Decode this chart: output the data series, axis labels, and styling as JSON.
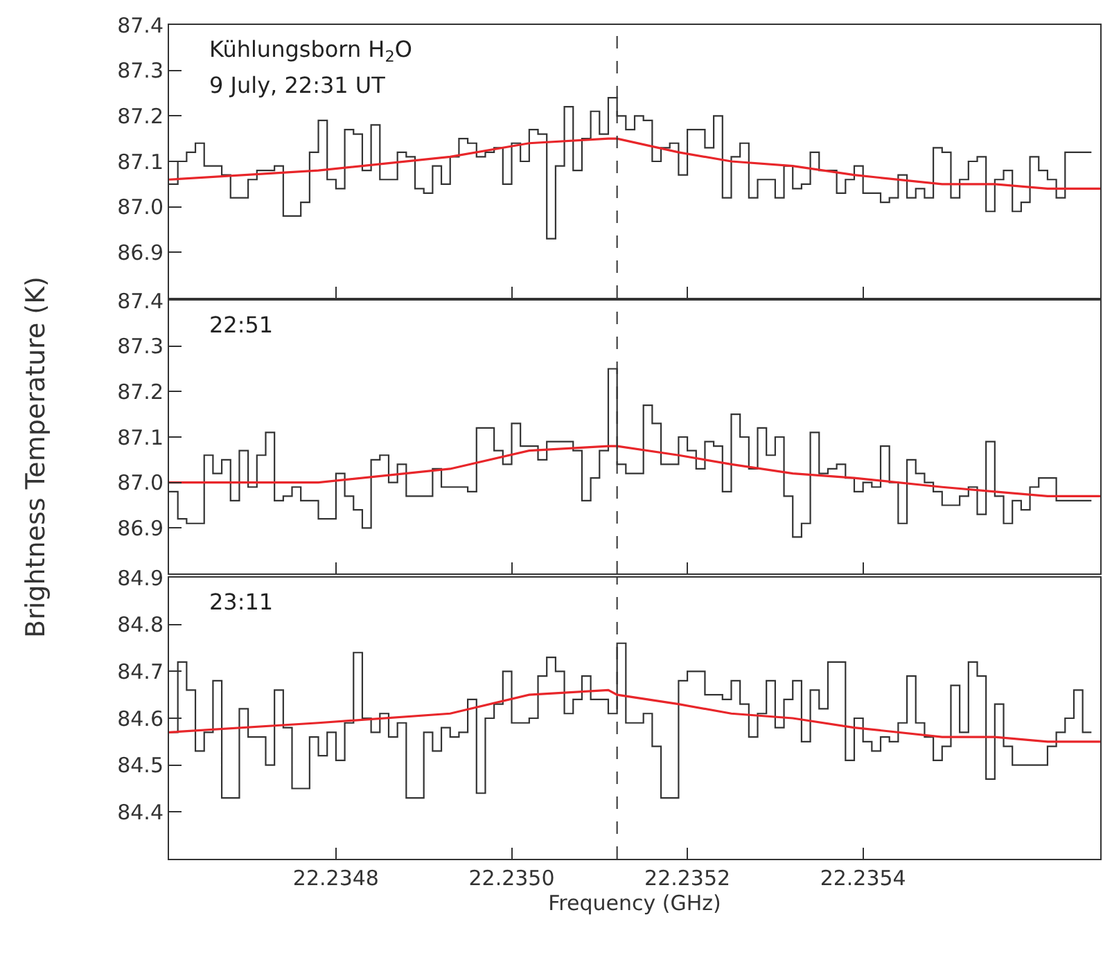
{
  "chart_data": [
    {
      "type": "step",
      "annotations": [
        "Kühlungsborn H$_{2}$O",
        "9 July, 22:31 UT"
      ],
      "x": [
        22.23461,
        22.23462,
        22.23463,
        22.23464,
        22.23465,
        22.23466,
        22.23467,
        22.23468,
        22.23469,
        22.2347,
        22.23471,
        22.23472,
        22.23473,
        22.23474,
        22.23475,
        22.23476,
        22.23477,
        22.23478,
        22.23479,
        22.2348,
        22.23481,
        22.23482,
        22.23483,
        22.23484,
        22.23485,
        22.23486,
        22.23487,
        22.23488,
        22.23489,
        22.2349,
        22.23491,
        22.23492,
        22.23493,
        22.23494,
        22.23495,
        22.23496,
        22.23497,
        22.23498,
        22.23499,
        22.235,
        22.23501,
        22.23502,
        22.23503,
        22.23504,
        22.23505,
        22.23506,
        22.23507,
        22.23508,
        22.23509,
        22.2351,
        22.23511,
        22.23512,
        22.23513,
        22.23514,
        22.23515,
        22.23516,
        22.23517,
        22.23518,
        22.23519,
        22.2352,
        22.23521,
        22.23522,
        22.23523,
        22.23524,
        22.23525,
        22.23526,
        22.23527,
        22.23528,
        22.23529,
        22.2353,
        22.23531,
        22.23532,
        22.23533,
        22.23534,
        22.23535,
        22.23536,
        22.23537,
        22.23538,
        22.23539,
        22.2354,
        22.23541,
        22.23542,
        22.23543,
        22.23544,
        22.23545,
        22.23546,
        22.23547,
        22.23548,
        22.23549,
        22.2355,
        22.23551,
        22.23552,
        22.23553,
        22.23554,
        22.23555,
        22.23556,
        22.23557,
        22.23558,
        22.23559,
        22.2356,
        22.23561,
        22.23562,
        22.23563,
        22.23564,
        22.23565,
        22.23566
      ],
      "series": [
        {
          "color": "#333333",
          "values": [
            87.05,
            87.1,
            87.12,
            87.14,
            87.09,
            87.09,
            87.07,
            87.02,
            87.02,
            87.06,
            87.08,
            87.08,
            87.09,
            86.98,
            86.98,
            87.01,
            87.12,
            87.19,
            87.06,
            87.04,
            87.17,
            87.16,
            87.08,
            87.18,
            87.06,
            87.06,
            87.12,
            87.11,
            87.04,
            87.03,
            87.09,
            87.05,
            87.11,
            87.15,
            87.14,
            87.11,
            87.12,
            87.13,
            87.05,
            87.14,
            87.1,
            87.17,
            87.16,
            86.93,
            87.09,
            87.22,
            87.08,
            87.15,
            87.21,
            87.16,
            87.24,
            87.2,
            87.17,
            87.2,
            87.19,
            87.1,
            87.13,
            87.14,
            87.07,
            87.17,
            87.17,
            87.13,
            87.2,
            87.02,
            87.11,
            87.14,
            87.02,
            87.06,
            87.06,
            87.02,
            87.09,
            87.04,
            87.05,
            87.12,
            87.08,
            87.08,
            87.03,
            87.06,
            87.09,
            87.03,
            87.03,
            87.01,
            87.02,
            87.07,
            87.02,
            87.04,
            87.02,
            87.13,
            87.12,
            87.02,
            87.06,
            87.1,
            87.11,
            86.99,
            87.06,
            87.08,
            86.99,
            87.01,
            87.11,
            87.08,
            87.06,
            87.02,
            87.12,
            87.12,
            87.12,
            87.12
          ]
        },
        {
          "type": "line",
          "color": "#e8262a",
          "x": [
            22.23461,
            22.23478,
            22.23493,
            22.23502,
            22.23511,
            22.23512,
            22.23519,
            22.23525,
            22.23532,
            22.23539,
            22.23549,
            22.23555,
            22.23561,
            22.23567
          ],
          "values": [
            87.06,
            87.08,
            87.11,
            87.14,
            87.15,
            87.15,
            87.12,
            87.1,
            87.09,
            87.07,
            87.05,
            87.05,
            87.04,
            87.04
          ]
        }
      ],
      "xlim": [
        22.23461,
        22.23567
      ],
      "xticks": [
        {
          "value": 22.2348,
          "label": null
        },
        {
          "value": 22.235,
          "label": null
        },
        {
          "value": 22.2352,
          "label": null
        },
        {
          "value": 22.2354,
          "label": null
        }
      ],
      "ylim": [
        86.8,
        87.4
      ],
      "yticks": [
        86.9,
        {
          "value": 87,
          "label": "87.0"
        },
        87.1,
        87.2,
        87.3,
        87.4
      ],
      "ref_lines": [
        {
          "axis": "x",
          "value": 22.23512,
          "color": "#333333",
          "line_style": "dashed"
        }
      ],
      "tick_labels": "y",
      "grid": false
    },
    {
      "type": "step",
      "annotations": [
        "22:51"
      ],
      "ylabel": "Brightness Temperature (K)",
      "x": [
        22.23461,
        22.23462,
        22.23463,
        22.23464,
        22.23465,
        22.23466,
        22.23467,
        22.23468,
        22.23469,
        22.2347,
        22.23471,
        22.23472,
        22.23473,
        22.23474,
        22.23475,
        22.23476,
        22.23477,
        22.23478,
        22.23479,
        22.2348,
        22.23481,
        22.23482,
        22.23483,
        22.23484,
        22.23485,
        22.23486,
        22.23487,
        22.23488,
        22.23489,
        22.2349,
        22.23491,
        22.23492,
        22.23493,
        22.23494,
        22.23495,
        22.23496,
        22.23497,
        22.23498,
        22.23499,
        22.235,
        22.23501,
        22.23502,
        22.23503,
        22.23504,
        22.23505,
        22.23506,
        22.23507,
        22.23508,
        22.23509,
        22.2351,
        22.23511,
        22.23512,
        22.23513,
        22.23514,
        22.23515,
        22.23516,
        22.23517,
        22.23518,
        22.23519,
        22.2352,
        22.23521,
        22.23522,
        22.23523,
        22.23524,
        22.23525,
        22.23526,
        22.23527,
        22.23528,
        22.23529,
        22.2353,
        22.23531,
        22.23532,
        22.23533,
        22.23534,
        22.23535,
        22.23536,
        22.23537,
        22.23538,
        22.23539,
        22.2354,
        22.23541,
        22.23542,
        22.23543,
        22.23544,
        22.23545,
        22.23546,
        22.23547,
        22.23548,
        22.23549,
        22.2355,
        22.23551,
        22.23552,
        22.23553,
        22.23554,
        22.23555,
        22.23556,
        22.23557,
        22.23558,
        22.23559,
        22.2356,
        22.23561,
        22.23562,
        22.23563,
        22.23564,
        22.23565,
        22.23566
      ],
      "series": [
        {
          "color": "#333333",
          "values": [
            86.98,
            86.92,
            86.91,
            86.91,
            87.06,
            87.02,
            87.05,
            86.96,
            87.07,
            86.99,
            87.06,
            87.11,
            86.96,
            86.97,
            86.99,
            86.96,
            86.96,
            86.92,
            86.92,
            87.02,
            86.97,
            86.94,
            86.9,
            87.05,
            87.06,
            87.0,
            87.04,
            86.97,
            86.97,
            86.97,
            87.03,
            86.99,
            86.99,
            86.99,
            86.98,
            87.12,
            87.12,
            87.07,
            87.04,
            87.13,
            87.08,
            87.08,
            87.05,
            87.09,
            87.09,
            87.09,
            87.07,
            86.96,
            87.01,
            87.07,
            87.25,
            87.04,
            87.02,
            87.02,
            87.17,
            87.13,
            87.04,
            87.04,
            87.1,
            87.07,
            87.03,
            87.09,
            87.08,
            86.98,
            87.15,
            87.1,
            87.03,
            87.12,
            87.06,
            87.1,
            86.97,
            86.88,
            86.91,
            87.11,
            87.02,
            87.03,
            87.04,
            87.01,
            86.98,
            87.0,
            86.99,
            87.08,
            87.0,
            86.91,
            87.05,
            87.02,
            87.0,
            86.98,
            86.95,
            86.95,
            86.97,
            86.99,
            86.93,
            87.09,
            86.97,
            86.91,
            86.96,
            86.94,
            86.99,
            87.01,
            87.01,
            86.96,
            86.96,
            86.96,
            86.96,
            86.96
          ]
        },
        {
          "type": "line",
          "color": "#e8262a",
          "x": [
            22.23461,
            22.23478,
            22.23493,
            22.23502,
            22.23511,
            22.23512,
            22.23519,
            22.23525,
            22.23532,
            22.23539,
            22.23549,
            22.23555,
            22.23561,
            22.23567
          ],
          "values": [
            87.0,
            87.0,
            87.03,
            87.07,
            87.08,
            87.08,
            87.06,
            87.04,
            87.02,
            87.01,
            86.99,
            86.98,
            86.97,
            86.97
          ]
        }
      ],
      "xlim": [
        22.23461,
        22.23567
      ],
      "xticks": [
        {
          "value": 22.2348,
          "label": null
        },
        {
          "value": 22.235,
          "label": null
        },
        {
          "value": 22.2352,
          "label": null
        },
        {
          "value": 22.2354,
          "label": null
        }
      ],
      "ylim": [
        86.8,
        87.4
      ],
      "yticks": [
        86.9,
        {
          "value": 87,
          "label": "87.0"
        },
        87.1,
        87.2,
        87.3,
        87.4
      ],
      "ref_lines": [
        {
          "axis": "x",
          "value": 22.23512,
          "color": "#333333",
          "line_style": "dashed"
        }
      ],
      "tick_labels": "y",
      "grid": false
    },
    {
      "type": "step",
      "annotations": [
        "23:11"
      ],
      "xlabel": "Frequency (GHz)",
      "x": [
        22.23461,
        22.23462,
        22.23463,
        22.23464,
        22.23465,
        22.23466,
        22.23467,
        22.23468,
        22.23469,
        22.2347,
        22.23471,
        22.23472,
        22.23473,
        22.23474,
        22.23475,
        22.23476,
        22.23477,
        22.23478,
        22.23479,
        22.2348,
        22.23481,
        22.23482,
        22.23483,
        22.23484,
        22.23485,
        22.23486,
        22.23487,
        22.23488,
        22.23489,
        22.2349,
        22.23491,
        22.23492,
        22.23493,
        22.23494,
        22.23495,
        22.23496,
        22.23497,
        22.23498,
        22.23499,
        22.235,
        22.23501,
        22.23502,
        22.23503,
        22.23504,
        22.23505,
        22.23506,
        22.23507,
        22.23508,
        22.23509,
        22.2351,
        22.23511,
        22.23512,
        22.23513,
        22.23514,
        22.23515,
        22.23516,
        22.23517,
        22.23518,
        22.23519,
        22.2352,
        22.23521,
        22.23522,
        22.23523,
        22.23524,
        22.23525,
        22.23526,
        22.23527,
        22.23528,
        22.23529,
        22.2353,
        22.23531,
        22.23532,
        22.23533,
        22.23534,
        22.23535,
        22.23536,
        22.23537,
        22.23538,
        22.23539,
        22.2354,
        22.23541,
        22.23542,
        22.23543,
        22.23544,
        22.23545,
        22.23546,
        22.23547,
        22.23548,
        22.23549,
        22.2355,
        22.23551,
        22.23552,
        22.23553,
        22.23554,
        22.23555,
        22.23556,
        22.23557,
        22.23558,
        22.23559,
        22.2356,
        22.23561,
        22.23562,
        22.23563,
        22.23564,
        22.23565,
        22.23566
      ],
      "series": [
        {
          "color": "#333333",
          "values": [
            84.57,
            84.72,
            84.66,
            84.53,
            84.57,
            84.68,
            84.43,
            84.43,
            84.62,
            84.56,
            84.56,
            84.5,
            84.66,
            84.58,
            84.45,
            84.45,
            84.56,
            84.52,
            84.57,
            84.51,
            84.59,
            84.74,
            84.6,
            84.57,
            84.61,
            84.56,
            84.59,
            84.43,
            84.43,
            84.57,
            84.53,
            84.58,
            84.56,
            84.57,
            84.64,
            84.44,
            84.6,
            84.63,
            84.7,
            84.59,
            84.59,
            84.6,
            84.69,
            84.73,
            84.7,
            84.61,
            84.64,
            84.69,
            84.64,
            84.64,
            84.61,
            84.76,
            84.59,
            84.59,
            84.61,
            84.54,
            84.43,
            84.43,
            84.68,
            84.7,
            84.7,
            84.65,
            84.65,
            84.64,
            84.68,
            84.63,
            84.56,
            84.61,
            84.68,
            84.58,
            84.64,
            84.68,
            84.55,
            84.66,
            84.62,
            84.72,
            84.72,
            84.51,
            84.6,
            84.55,
            84.53,
            84.56,
            84.55,
            84.59,
            84.69,
            84.59,
            84.56,
            84.51,
            84.54,
            84.67,
            84.57,
            84.72,
            84.69,
            84.47,
            84.63,
            84.54,
            84.5,
            84.5,
            84.5,
            84.5,
            84.54,
            84.57,
            84.6,
            84.66,
            84.57,
            84.57
          ]
        },
        {
          "type": "line",
          "color": "#e8262a",
          "x": [
            22.23461,
            22.23478,
            22.23493,
            22.23502,
            22.23511,
            22.23512,
            22.23519,
            22.23525,
            22.23532,
            22.23539,
            22.23549,
            22.23555,
            22.23561,
            22.23567
          ],
          "values": [
            84.57,
            84.59,
            84.61,
            84.65,
            84.66,
            84.65,
            84.63,
            84.61,
            84.6,
            84.58,
            84.56,
            84.56,
            84.55,
            84.55
          ]
        }
      ],
      "xlim": [
        22.23461,
        22.23567
      ],
      "xticks": [
        22.2348,
        {
          "value": 22.235,
          "label": "22.2350"
        },
        22.2352,
        22.2354
      ],
      "ylim": [
        84.3,
        84.9
      ],
      "yticks": [
        84.4,
        84.5,
        84.6,
        84.7,
        84.8,
        84.9
      ],
      "ref_lines": [
        {
          "axis": "x",
          "value": 22.23512,
          "color": "#333333",
          "line_style": "dashed"
        }
      ],
      "grid": false
    }
  ]
}
